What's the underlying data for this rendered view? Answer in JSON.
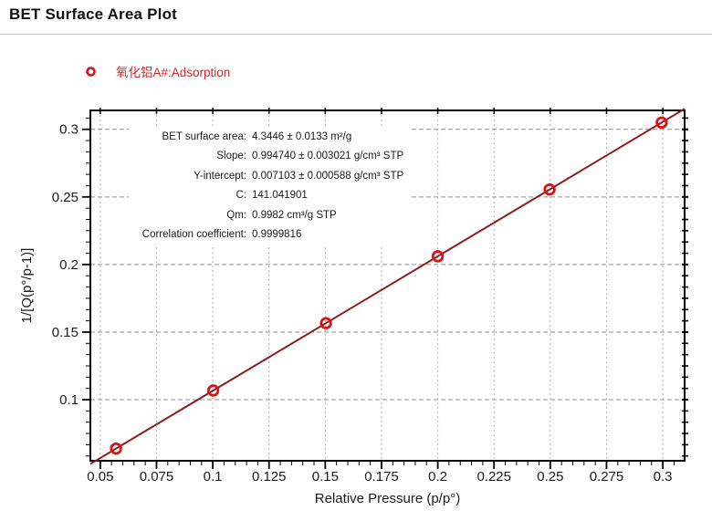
{
  "page": {
    "title": "BET Surface Area Plot"
  },
  "legend": {
    "label": "氧化铝A#:Adsorption",
    "marker": "open-circle",
    "marker_color": "#dd1111"
  },
  "chart_data": {
    "type": "scatter",
    "title": "BET Surface Area Plot",
    "xlabel": "Relative Pressure (p/p°)",
    "ylabel": "1/[Q(p°/p-1)]",
    "xlim": [
      0.0456,
      0.3097
    ],
    "ylim": [
      0.0548,
      0.314
    ],
    "grid": true,
    "x_major_ticks": [
      0.05,
      0.075,
      0.1,
      0.125,
      0.15,
      0.175,
      0.2,
      0.225,
      0.25,
      0.275,
      0.3
    ],
    "x_tick_labels": [
      "0.05",
      "0.075",
      "0.1",
      "0.125",
      "0.15",
      "0.175",
      "0.2",
      "0.225",
      "0.25",
      "0.275",
      "0.3"
    ],
    "x_minor_step": 0.005,
    "y_major_ticks": [
      0.1,
      0.15,
      0.2,
      0.25,
      0.3
    ],
    "y_tick_labels": [
      "0.1",
      "0.15",
      "0.2",
      "0.25",
      "0.3"
    ],
    "y_minor_divisions": 6,
    "series": [
      {
        "name": "氧化铝A#:Adsorption",
        "marker": "open-circle",
        "marker_color": "#dd1111",
        "x": [
          0.057,
          0.1002,
          0.1503,
          0.2,
          0.2497,
          0.2995
        ],
        "y": [
          0.0638,
          0.1068,
          0.1566,
          0.2061,
          0.2555,
          0.305
        ]
      }
    ],
    "fit": {
      "slope": 0.99474,
      "intercept": 0.007103,
      "line_color": "#8b1e1e"
    },
    "annotation": {
      "rows": [
        {
          "label": "BET surface area:",
          "value": "4.3446 ± 0.0133 m²/g"
        },
        {
          "label": "Slope:",
          "value": "0.994740 ± 0.003021 g/cm³ STP"
        },
        {
          "label": "Y-intercept:",
          "value": "0.007103 ± 0.000588 g/cm³ STP"
        },
        {
          "label": "C:",
          "value": "141.041901"
        },
        {
          "label": "Qm:",
          "value": "0.9982 cm³/g STP"
        },
        {
          "label": "Correlation coefficient:",
          "value": "0.9999816"
        }
      ]
    },
    "colors": {
      "marker": "#dd1111",
      "fit_line": "#8b1e1e",
      "grid_vertical": "#b0b0b0",
      "grid_horizontal": "#8f8f8f",
      "spine": "#000000",
      "tick_label": "#1a1a1a"
    }
  }
}
